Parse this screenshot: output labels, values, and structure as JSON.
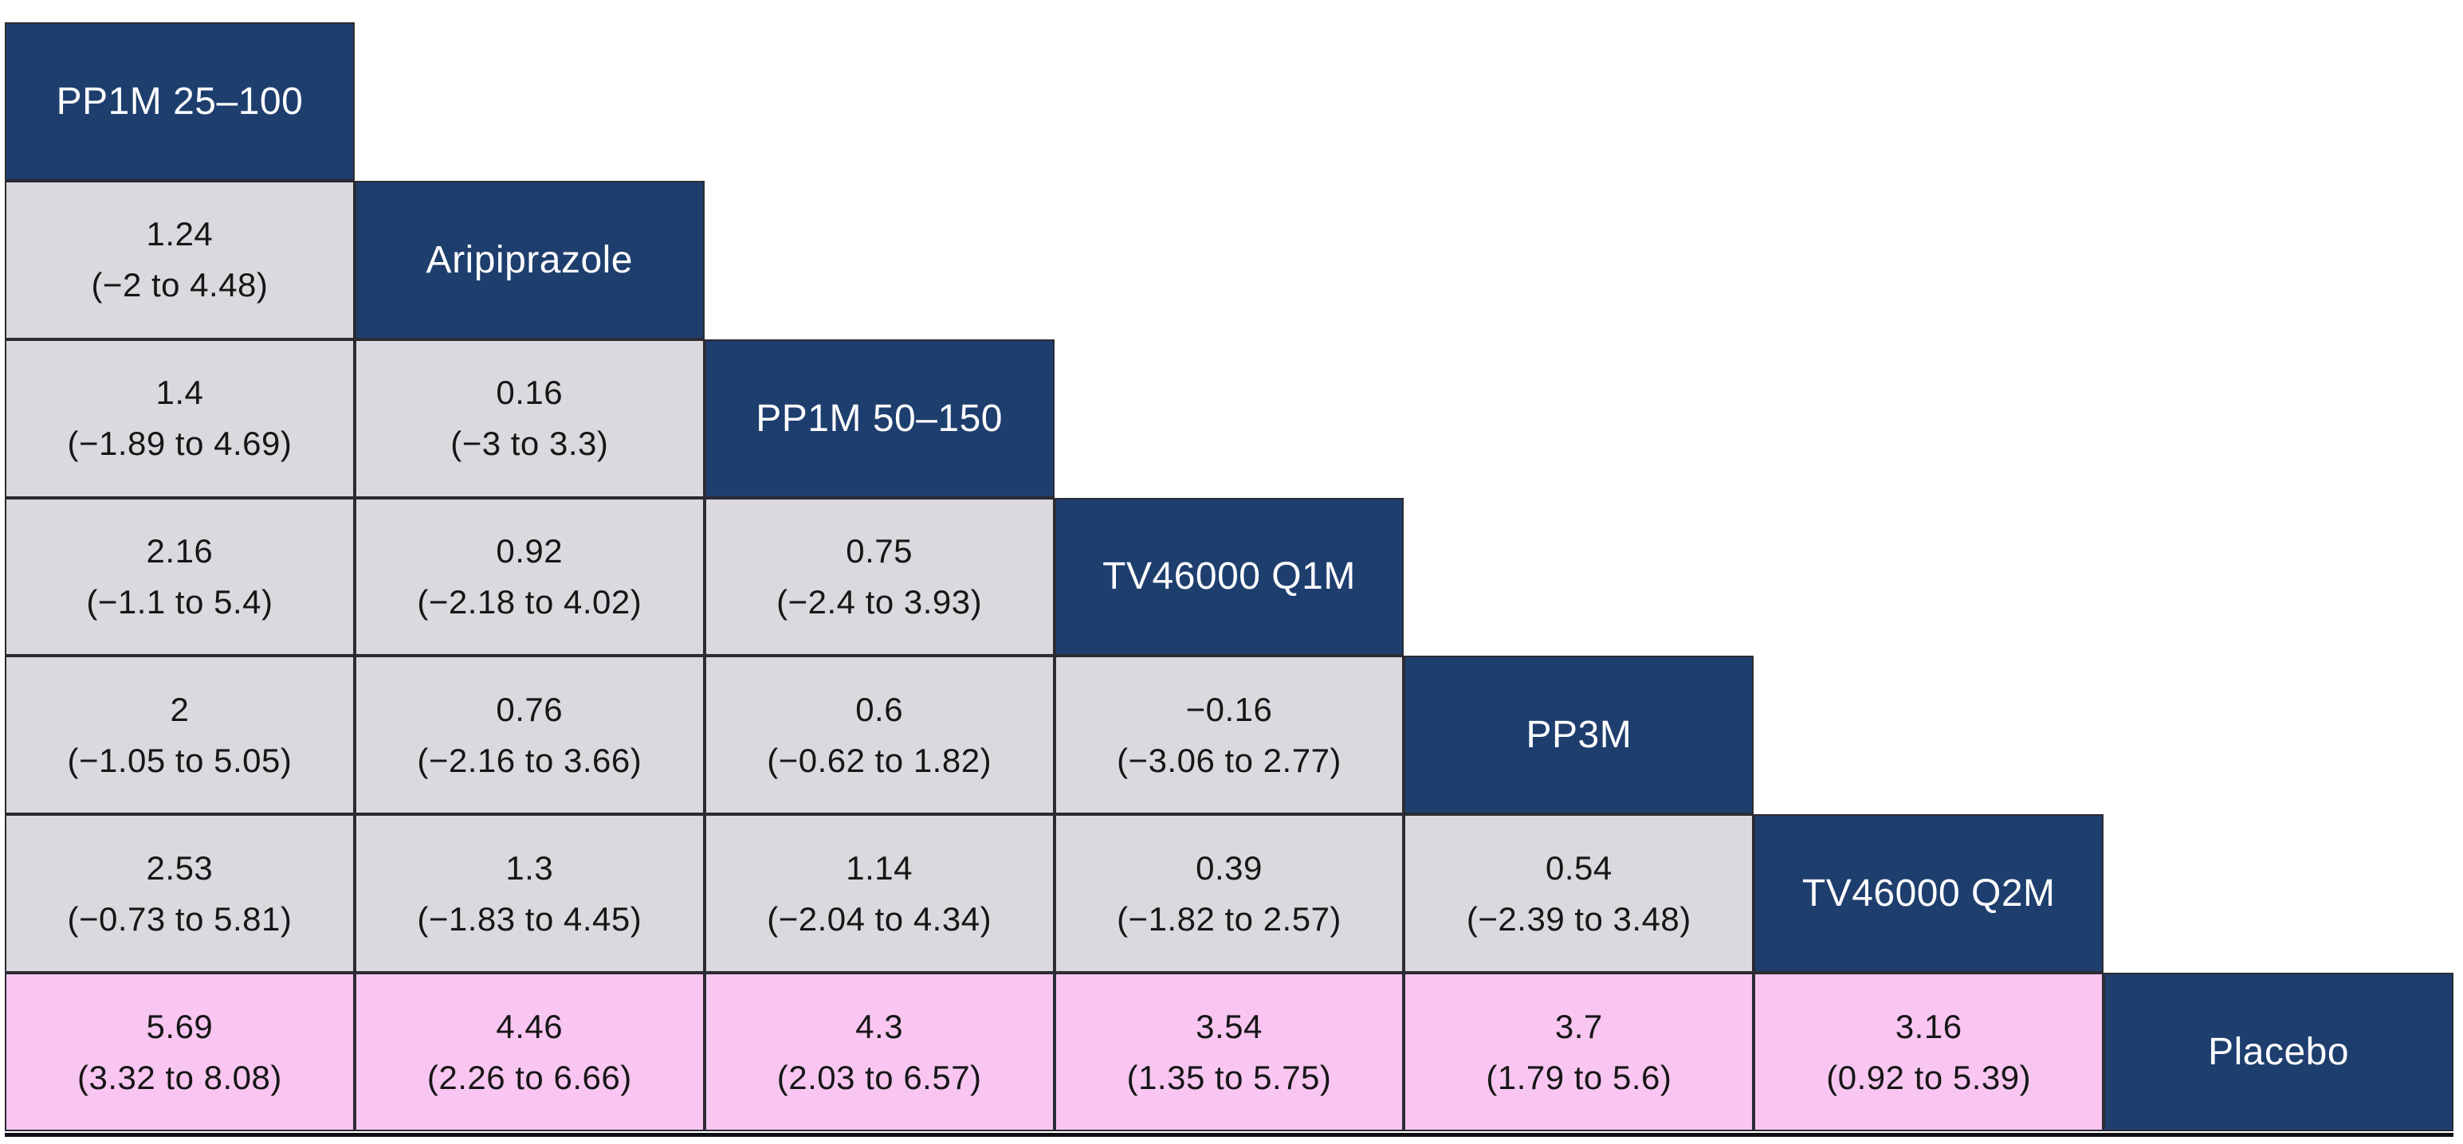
{
  "colors": {
    "treatment_cell_navy": "#1e3e6e",
    "comparison_cell_gray": "#dbd9dd",
    "placebo_row_pink": "#f8c6f1",
    "cell_border": "#2c2b33",
    "text_dark": "#161616",
    "text_light": "#ffffff",
    "background": "#ffffff"
  },
  "chart_data": {
    "type": "table",
    "description": "Triangular league table of pairwise treatment comparisons, mean difference with 95% interval; diagonal cells name the treatments, bottom pink row is comparisons versus Placebo.",
    "treatments": [
      "PP1M 25–100",
      "Aripiprazole",
      "PP1M 50–150",
      "TV46000 Q1M",
      "PP3M",
      "TV46000 Q2M",
      "Placebo"
    ],
    "rows": [
      {
        "diagonal": "PP1M 25–100",
        "cells": []
      },
      {
        "diagonal": "Aripiprazole",
        "cells": [
          {
            "estimate": "1.24",
            "ci": "(−2 to 4.48)"
          }
        ]
      },
      {
        "diagonal": "PP1M 50–150",
        "cells": [
          {
            "estimate": "1.4",
            "ci": "(−1.89 to 4.69)"
          },
          {
            "estimate": "0.16",
            "ci": "(−3 to 3.3)"
          }
        ]
      },
      {
        "diagonal": "TV46000 Q1M",
        "cells": [
          {
            "estimate": "2.16",
            "ci": "(−1.1 to 5.4)"
          },
          {
            "estimate": "0.92",
            "ci": "(−2.18 to 4.02)"
          },
          {
            "estimate": "0.75",
            "ci": "(−2.4 to 3.93)"
          }
        ]
      },
      {
        "diagonal": "PP3M",
        "cells": [
          {
            "estimate": "2",
            "ci": "(−1.05 to 5.05)"
          },
          {
            "estimate": "0.76",
            "ci": "(−2.16 to 3.66)"
          },
          {
            "estimate": "0.6",
            "ci": "(−0.62 to 1.82)"
          },
          {
            "estimate": "−0.16",
            "ci": "(−3.06 to 2.77)"
          }
        ]
      },
      {
        "diagonal": "TV46000 Q2M",
        "cells": [
          {
            "estimate": "2.53",
            "ci": "(−0.73 to 5.81)"
          },
          {
            "estimate": "1.3",
            "ci": "(−1.83 to 4.45)"
          },
          {
            "estimate": "1.14",
            "ci": "(−2.04 to 4.34)"
          },
          {
            "estimate": "0.39",
            "ci": "(−1.82 to 2.57)"
          },
          {
            "estimate": "0.54",
            "ci": "(−2.39 to 3.48)"
          }
        ]
      },
      {
        "diagonal": "Placebo",
        "highlighted": true,
        "cells": [
          {
            "estimate": "5.69",
            "ci": "(3.32 to 8.08)"
          },
          {
            "estimate": "4.46",
            "ci": "(2.26 to 6.66)"
          },
          {
            "estimate": "4.3",
            "ci": "(2.03 to 6.57)"
          },
          {
            "estimate": "3.54",
            "ci": "(1.35 to 5.75)"
          },
          {
            "estimate": "3.7",
            "ci": "(1.79 to 5.6)"
          },
          {
            "estimate": "3.16",
            "ci": "(0.92 to 5.39)"
          }
        ]
      }
    ]
  }
}
